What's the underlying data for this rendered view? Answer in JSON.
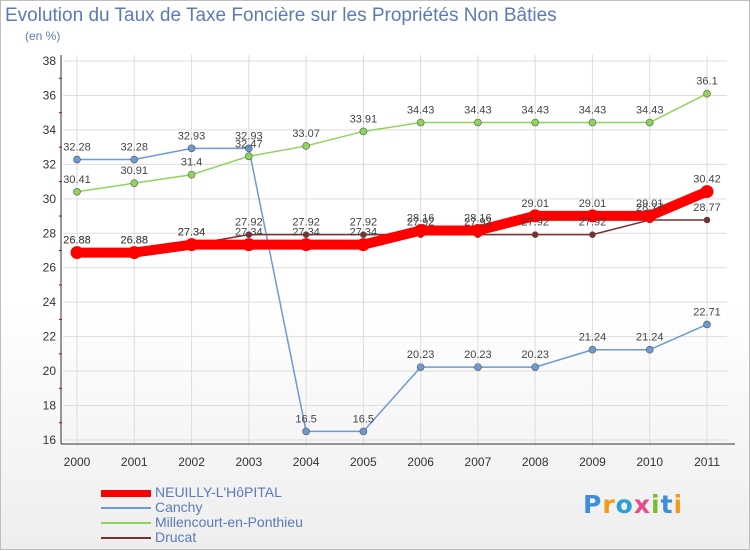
{
  "chart_data": {
    "type": "line",
    "title": "Evolution du Taux de Taxe Foncière sur les Propriétés Non Bâties",
    "subtitle": "(en %)",
    "xlabel": "",
    "ylabel": "(en %)",
    "x": [
      "2000",
      "2001",
      "2002",
      "2003",
      "2004",
      "2005",
      "2006",
      "2007",
      "2008",
      "2009",
      "2010",
      "2011"
    ],
    "ylim": [
      16,
      38
    ],
    "yticks": [
      "16",
      "18",
      "20",
      "22",
      "24",
      "26",
      "28",
      "30",
      "32",
      "34",
      "36",
      "38"
    ],
    "grid": true,
    "legend_position": "bottom-left",
    "series": [
      {
        "name": "NEUILLY-L'HôPITAL",
        "color": "#ff0000",
        "values": [
          26.88,
          26.88,
          27.34,
          27.34,
          27.34,
          27.34,
          28.16,
          28.16,
          29.01,
          29.01,
          29.01,
          30.42
        ],
        "labels": [
          "26.88",
          "26.88",
          "27.34",
          "27.34",
          "27.34",
          "27.34",
          "28.16",
          "28.16",
          "29.01",
          "29.01",
          "29.01",
          "30.42"
        ]
      },
      {
        "name": "Canchy",
        "color": "#6b9bd2",
        "values": [
          32.28,
          32.28,
          32.93,
          32.93,
          16.5,
          16.5,
          20.23,
          20.23,
          20.23,
          21.24,
          21.24,
          22.71
        ],
        "labels": [
          "32.28",
          "32.28",
          "32.93",
          "32.93",
          "16.5",
          "16.5",
          "20.23",
          "20.23",
          "20.23",
          "21.24",
          "21.24",
          "22.71"
        ]
      },
      {
        "name": "Millencourt-en-Ponthieu",
        "color": "#8fd45a",
        "values": [
          30.41,
          30.91,
          31.4,
          32.47,
          33.07,
          33.91,
          34.43,
          34.43,
          34.43,
          34.43,
          34.43,
          36.1
        ],
        "labels": [
          "30.41",
          "30.91",
          "31.4",
          "32.47",
          "33.07",
          "33.91",
          "34.43",
          "34.43",
          "34.43",
          "34.43",
          "34.43",
          "36.1"
        ]
      },
      {
        "name": "Drucat",
        "color": "#7a3030",
        "values": [
          26.88,
          26.88,
          27.34,
          27.92,
          27.92,
          27.92,
          27.92,
          27.92,
          27.92,
          27.92,
          28.77,
          28.77
        ],
        "labels": [
          "26.88",
          "26.88",
          "27.34",
          "27.92",
          "27.92",
          "27.92",
          "27.92",
          "27.92",
          "27.92",
          "27.92",
          "28.77",
          "28.77"
        ]
      }
    ]
  },
  "logo": {
    "text": "Proxiti",
    "letter_colors": [
      "#3f8fd8",
      "#f19a1b",
      "#2c9fd6",
      "#e84b8a",
      "#7cbc2c",
      "#3f8fd8",
      "#f19a1b"
    ]
  }
}
